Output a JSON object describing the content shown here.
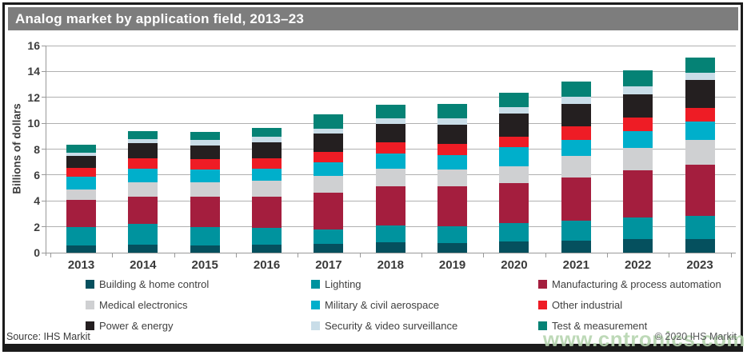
{
  "header": {
    "title": "Analog market by application field, 2013–23"
  },
  "chart_data": {
    "type": "bar",
    "stacked": true,
    "title": "Analog market by application field, 2013–23",
    "xlabel": "",
    "ylabel": "Billions of dollars",
    "ylim": [
      0,
      16
    ],
    "ytick_step": 2,
    "grid": true,
    "legend_position": "bottom",
    "categories": [
      "2013",
      "2014",
      "2015",
      "2016",
      "2017",
      "2018",
      "2019",
      "2020",
      "2021",
      "2022",
      "2023"
    ],
    "series": [
      {
        "name": "Building & home control",
        "color": "#05505e",
        "values": [
          0.55,
          0.6,
          0.55,
          0.6,
          0.7,
          0.8,
          0.75,
          0.85,
          0.95,
          1.05,
          1.05
        ]
      },
      {
        "name": "Lighting",
        "color": "#00939e",
        "values": [
          1.45,
          1.6,
          1.45,
          1.3,
          1.1,
          1.3,
          1.3,
          1.45,
          1.55,
          1.65,
          1.8
        ]
      },
      {
        "name": "Manufacturing & process automation",
        "color": "#a41e3e",
        "values": [
          2.05,
          2.15,
          2.3,
          2.4,
          2.85,
          3.05,
          3.05,
          3.1,
          3.3,
          3.65,
          3.95
        ]
      },
      {
        "name": "Medical electronics",
        "color": "#cfd0d2",
        "values": [
          0.85,
          1.1,
          1.15,
          1.25,
          1.25,
          1.35,
          1.3,
          1.25,
          1.65,
          1.75,
          1.9
        ]
      },
      {
        "name": "Military & civil aerospace",
        "color": "#00afcb",
        "values": [
          0.95,
          1.05,
          0.95,
          0.95,
          1.05,
          1.15,
          1.15,
          1.5,
          1.25,
          1.3,
          1.45
        ]
      },
      {
        "name": "Other industrial",
        "color": "#ee1c25",
        "values": [
          0.7,
          0.8,
          0.8,
          0.8,
          0.85,
          0.85,
          0.85,
          0.8,
          1.05,
          1.05,
          1.05
        ]
      },
      {
        "name": "Power & energy",
        "color": "#241f20",
        "values": [
          0.9,
          1.15,
          1.1,
          1.25,
          1.4,
          1.45,
          1.5,
          1.8,
          1.75,
          1.8,
          2.15
        ]
      },
      {
        "name": "Security & video surveillance",
        "color": "#c9dde8",
        "values": [
          0.3,
          0.3,
          0.4,
          0.4,
          0.4,
          0.4,
          0.5,
          0.5,
          0.55,
          0.6,
          0.55
        ]
      },
      {
        "name": "Test & measurement",
        "color": "#058275",
        "values": [
          0.6,
          0.65,
          0.65,
          0.7,
          1.1,
          1.1,
          1.1,
          1.1,
          1.15,
          1.25,
          1.15
        ]
      }
    ],
    "totals": [
      8.35,
      9.4,
      9.35,
      9.65,
      10.7,
      11.45,
      11.5,
      12.35,
      13.2,
      14.1,
      15.05
    ]
  },
  "footer": {
    "source": "Source: IHS Markit",
    "copyright": "© 2020 IHS Markit"
  },
  "watermark": {
    "text": "www.cntronics.com",
    "color": "#b5d4ae"
  },
  "theme": {
    "title_bar_bg": "#7d7d7d",
    "title_text": "#ffffff",
    "frame_border": "#1b1b1b",
    "gridline": "#b0b0b0",
    "axis": "#999999"
  }
}
